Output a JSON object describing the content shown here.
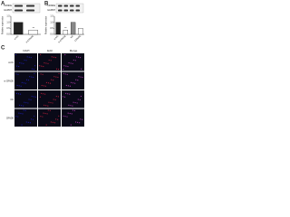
{
  "chart_data": [
    {
      "type": "bar",
      "panel_label": "A",
      "ylabel": "Relative expression",
      "blot_labels": [
        "CRNDE",
        "GAPDH"
      ],
      "categories": [
        "si-NC",
        "si-CRNDE"
      ],
      "values": [
        1.0,
        0.35
      ],
      "colors": [
        "#222222",
        "#ffffff"
      ],
      "ylim": [
        0,
        1.5
      ],
      "yticks": [
        {
          "value": 0,
          "label": "0.0"
        },
        {
          "value": 0.5,
          "label": "0.5"
        },
        {
          "value": 1,
          "label": "1.0"
        },
        {
          "value": 1.5,
          "label": "1.5"
        }
      ],
      "annotation": "**"
    },
    {
      "type": "bar",
      "panel_label": "B",
      "ylabel": "Relative expression",
      "blot_labels": [
        "CRNDE",
        "GAPDH"
      ],
      "categories": [
        "si-NC",
        "si-CRNDE",
        "NC",
        "CRNDE"
      ],
      "values": [
        1.0,
        0.35,
        1.0,
        0.5
      ],
      "colors": [
        "#222222",
        "#ffffff",
        "#888888",
        "#ffffff"
      ],
      "ylim": [
        0,
        1.5
      ],
      "yticks": [
        {
          "value": 0,
          "label": "0.0"
        },
        {
          "value": 0.5,
          "label": "0.5"
        },
        {
          "value": 1,
          "label": "1.0"
        },
        {
          "value": 1.5,
          "label": "1.5"
        }
      ],
      "annotation": "**"
    }
  ],
  "images": {
    "panel_label": "C",
    "columns": [
      "DAPI",
      "EdU",
      "Merge"
    ],
    "rows": [
      "si-NC",
      "si-CRNDE",
      "NC",
      "CRNDE"
    ]
  }
}
